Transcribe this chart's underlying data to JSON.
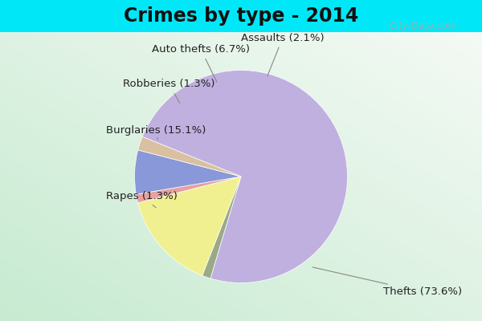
{
  "title": "Crimes by type - 2014",
  "wedge_order": [
    "Thefts",
    "Rapes",
    "Burglaries",
    "Robberies",
    "Auto thefts",
    "Assaults"
  ],
  "values": [
    73.6,
    1.3,
    15.1,
    1.3,
    6.7,
    2.1
  ],
  "colors": [
    "#c0b0e0",
    "#9aaa88",
    "#f0f090",
    "#e8a0a0",
    "#8898d8",
    "#d8c0a0"
  ],
  "label_texts": [
    "Thefts (73.6%)",
    "Rapes (1.3%)",
    "Burglaries (15.1%)",
    "Robberies (1.3%)",
    "Auto thefts (6.7%)",
    "Assaults (2.1%)"
  ],
  "title_fontsize": 17,
  "label_fontsize": 9.5,
  "bg_top_color": "#00e8f8",
  "watermark": "  City-Data.com",
  "startangle": 158
}
